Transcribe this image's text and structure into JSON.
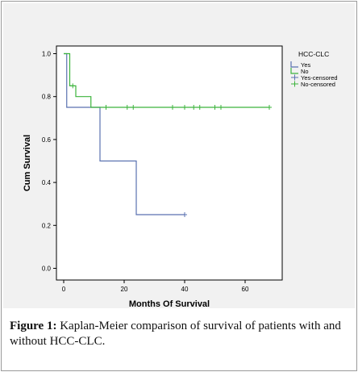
{
  "caption": {
    "label": "Figure 1:",
    "text": " Kaplan-Meier comparison of survival of patients with and without HCC-CLC."
  },
  "colors": {
    "yes": "#5a72b0",
    "no": "#3cb43c",
    "axis": "#000000",
    "panel_bg": "#f1f1f1",
    "plot_bg": "#ffffff"
  },
  "chart_data": {
    "type": "line",
    "subtype": "kaplan-meier",
    "xlabel": "Months Of Survival",
    "ylabel": "Cum Survival",
    "xlim": [
      0,
      70
    ],
    "ylim": [
      0,
      1.05
    ],
    "xticks": [
      0,
      20,
      40,
      60
    ],
    "yticks": [
      0.0,
      0.2,
      0.4,
      0.6,
      0.8,
      1.0
    ],
    "ytick_labels": [
      "0.0",
      "0.2",
      "0.4",
      "0.6",
      "0.8",
      "1.0"
    ],
    "grid": false,
    "legend": {
      "title": "HCC-CLC",
      "placement": "right",
      "entries": [
        "Yes",
        "No",
        "Yes-censored",
        "No-censored"
      ]
    },
    "series": [
      {
        "name": "Yes",
        "color_key": "yes",
        "steps": [
          [
            0,
            1.0
          ],
          [
            1,
            0.75
          ],
          [
            12,
            0.5
          ],
          [
            24,
            0.25
          ],
          [
            40,
            0.25
          ]
        ],
        "censored": [
          [
            40,
            0.25
          ]
        ]
      },
      {
        "name": "No",
        "color_key": "no",
        "steps": [
          [
            0,
            1.0
          ],
          [
            2,
            0.85
          ],
          [
            4,
            0.8
          ],
          [
            9,
            0.75
          ],
          [
            68,
            0.75
          ]
        ],
        "censored": [
          [
            3,
            0.85
          ],
          [
            14,
            0.75
          ],
          [
            21,
            0.75
          ],
          [
            23,
            0.75
          ],
          [
            36,
            0.75
          ],
          [
            40,
            0.75
          ],
          [
            43,
            0.75
          ],
          [
            45,
            0.75
          ],
          [
            50,
            0.75
          ],
          [
            52,
            0.75
          ],
          [
            68,
            0.75
          ]
        ]
      }
    ]
  }
}
